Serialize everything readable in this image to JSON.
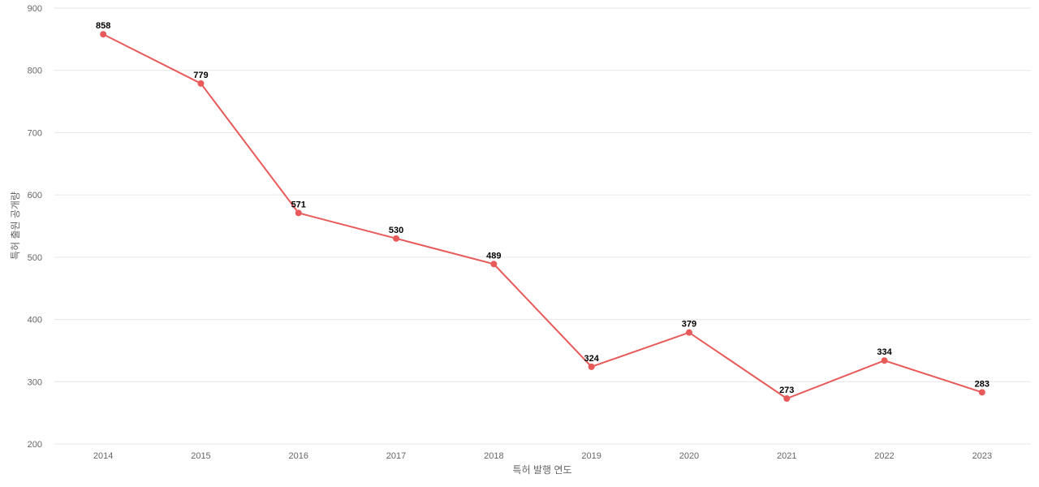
{
  "chart_data": {
    "type": "line",
    "title": "",
    "xlabel": "특허 발행 연도",
    "ylabel": "특허 출원 공개량",
    "categories": [
      "2014",
      "2015",
      "2016",
      "2017",
      "2018",
      "2019",
      "2020",
      "2021",
      "2022",
      "2023"
    ],
    "series": [
      {
        "values": [
          858,
          779,
          571,
          530,
          489,
          324,
          379,
          273,
          334,
          283
        ],
        "color": "#e85a5a"
      }
    ],
    "ylim": [
      200,
      900
    ],
    "yticks": [
      200,
      300,
      400,
      500,
      600,
      700,
      800,
      900
    ],
    "grid": true,
    "data_labels": true
  }
}
